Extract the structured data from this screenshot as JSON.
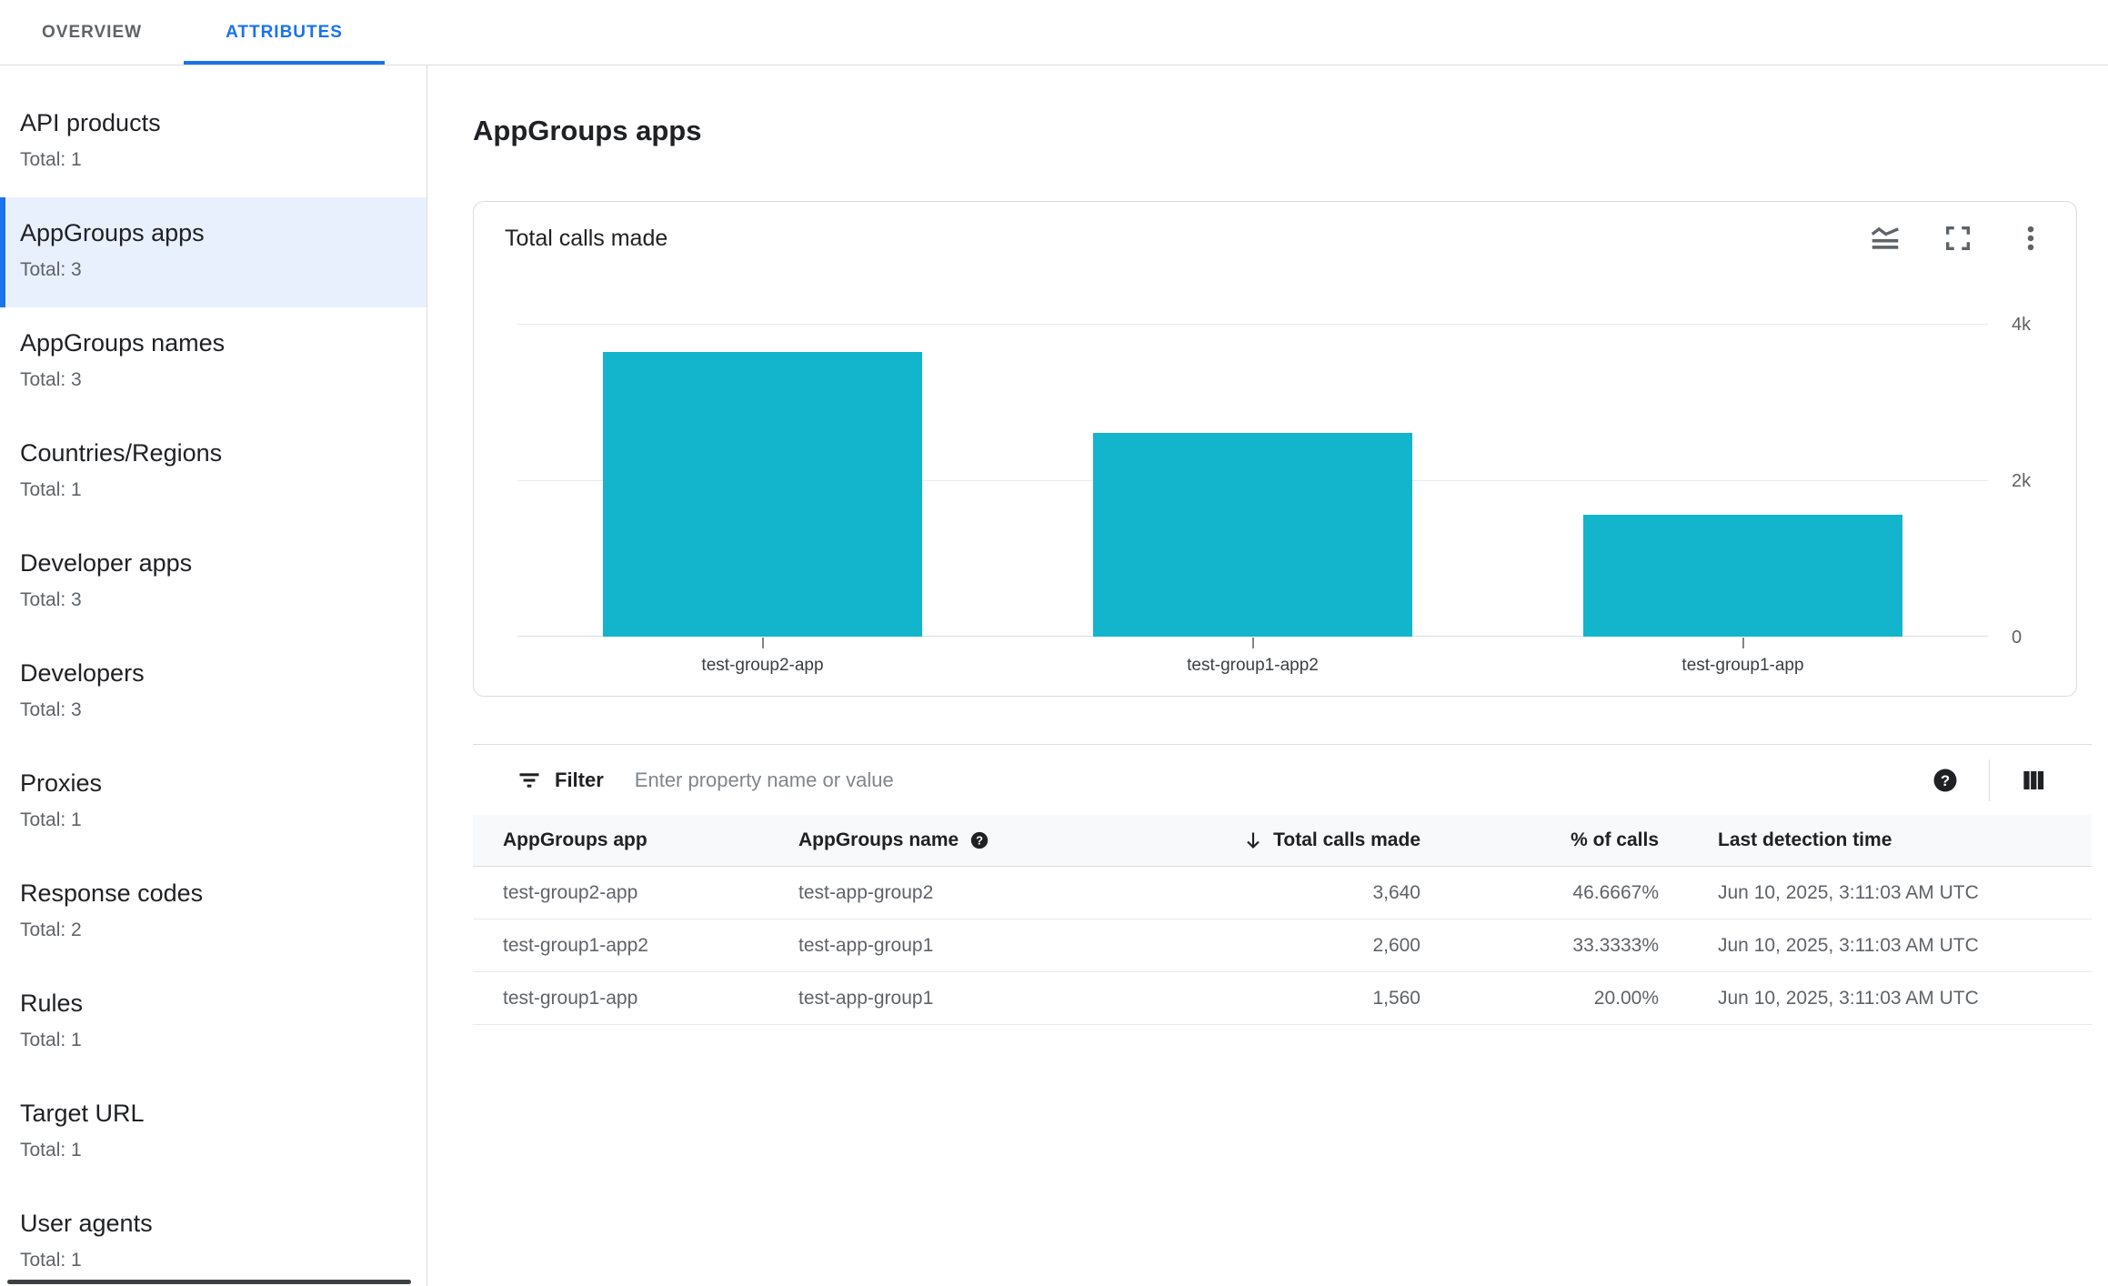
{
  "tabs": {
    "overview": "OVERVIEW",
    "attributes": "ATTRIBUTES"
  },
  "sidebar": {
    "items": [
      {
        "label": "API products",
        "total": "Total: 1",
        "selected": false
      },
      {
        "label": "AppGroups apps",
        "total": "Total: 3",
        "selected": true
      },
      {
        "label": "AppGroups names",
        "total": "Total: 3",
        "selected": false
      },
      {
        "label": "Countries/Regions",
        "total": "Total: 1",
        "selected": false
      },
      {
        "label": "Developer apps",
        "total": "Total: 3",
        "selected": false
      },
      {
        "label": "Developers",
        "total": "Total: 3",
        "selected": false
      },
      {
        "label": "Proxies",
        "total": "Total: 1",
        "selected": false
      },
      {
        "label": "Response codes",
        "total": "Total: 2",
        "selected": false
      },
      {
        "label": "Rules",
        "total": "Total: 1",
        "selected": false
      },
      {
        "label": "Target URL",
        "total": "Total: 1",
        "selected": false
      },
      {
        "label": "User agents",
        "total": "Total: 1",
        "selected": false
      }
    ]
  },
  "page": {
    "title": "AppGroups apps"
  },
  "chart_card": {
    "title": "Total calls made",
    "icons": [
      "chart-type-icon",
      "fullscreen-icon",
      "more-vert-icon"
    ]
  },
  "chart_data": {
    "type": "bar",
    "title": "Total calls made",
    "categories": [
      "test-group2-app",
      "test-group1-app2",
      "test-group1-app"
    ],
    "values": [
      3640,
      2600,
      1560
    ],
    "xlabel": "",
    "ylabel": "",
    "ylim": [
      0,
      4000
    ],
    "yticks": [
      {
        "value": 0,
        "label": "0"
      },
      {
        "value": 2000,
        "label": "2k"
      },
      {
        "value": 4000,
        "label": "4k"
      }
    ],
    "grid": true,
    "legend": "none",
    "bar_color": "#12b5cb",
    "yaxis_position": "right"
  },
  "filter": {
    "label": "Filter",
    "placeholder": "Enter property name or value",
    "icons": [
      "filter-icon",
      "help-icon",
      "columns-icon"
    ]
  },
  "table": {
    "columns": [
      {
        "label": "AppGroups app"
      },
      {
        "label": "AppGroups name",
        "help_icon": true
      },
      {
        "label": "Total calls made",
        "sorted": "desc"
      },
      {
        "label": "% of calls"
      },
      {
        "label": "Last detection time"
      }
    ],
    "rows": [
      {
        "app": "test-group2-app",
        "name": "test-app-group2",
        "calls": "3,640",
        "pct": "46.6667%",
        "time": "Jun 10, 2025, 3:11:03 AM UTC"
      },
      {
        "app": "test-group1-app2",
        "name": "test-app-group1",
        "calls": "2,600",
        "pct": "33.3333%",
        "time": "Jun 10, 2025, 3:11:03 AM UTC"
      },
      {
        "app": "test-group1-app",
        "name": "test-app-group1",
        "calls": "1,560",
        "pct": "20.00%",
        "time": "Jun 10, 2025, 3:11:03 AM UTC"
      }
    ]
  },
  "colors": {
    "accent": "#1a73e8",
    "bar": "#12b5cb",
    "selected_item_bg": "#e8f0fe",
    "header_row_bg": "#f8f9fa",
    "border": "#dadce0"
  }
}
